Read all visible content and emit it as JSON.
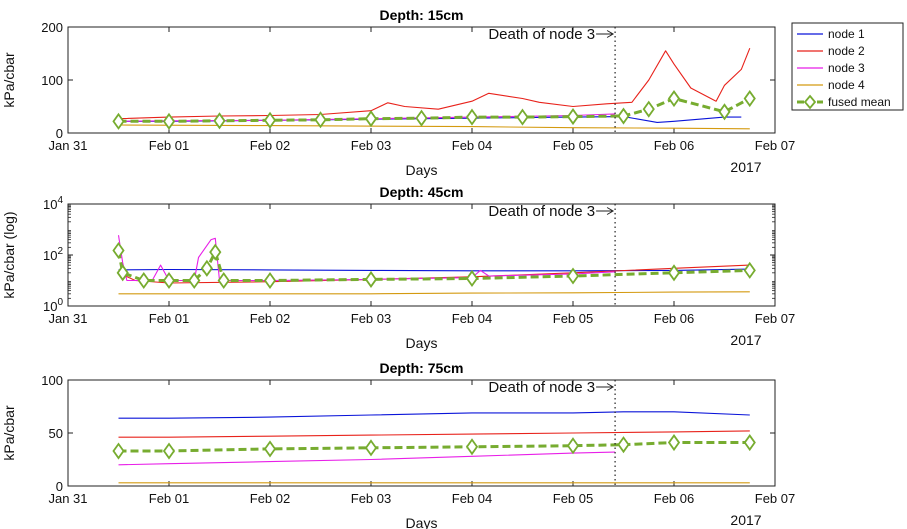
{
  "colors": {
    "node1": "#0a14d9",
    "node2": "#e8221b",
    "node3": "#e81fe8",
    "node4": "#d49a10",
    "fused": "#77ac30"
  },
  "legend": {
    "items": [
      {
        "key": "node1",
        "label": "node 1",
        "style": "line"
      },
      {
        "key": "node2",
        "label": "node 2",
        "style": "line"
      },
      {
        "key": "node3",
        "label": "node 3",
        "style": "line"
      },
      {
        "key": "node4",
        "label": "node 4",
        "style": "line"
      },
      {
        "key": "fused",
        "label": "fused mean",
        "style": "dashed-diamond"
      }
    ]
  },
  "chart_data": [
    {
      "type": "line",
      "title": "Depth: 15cm",
      "xlabel": "Days",
      "ylabel": "kPa/cbar",
      "year_label": "2017",
      "xlim": [
        "2017-01-31 00:00",
        "2017-02-07 00:00"
      ],
      "ylim": [
        0,
        200
      ],
      "yscale": "linear",
      "xticks": [
        "Jan 31",
        "Feb 01",
        "Feb 02",
        "Feb 03",
        "Feb 04",
        "Feb 05",
        "Feb 06",
        "Feb 07"
      ],
      "yticks": [
        "0",
        "100",
        "200"
      ],
      "annotation": {
        "text": "Death of node 3",
        "x": "2017-02-05 10:00"
      },
      "series": [
        {
          "name": "node 1",
          "key": "node1",
          "x": [
            "2017-01-31 12:00",
            "2017-02-01 00:00",
            "2017-02-01 12:00",
            "2017-02-02 00:00",
            "2017-02-02 12:00",
            "2017-02-03 00:00",
            "2017-02-03 12:00",
            "2017-02-04 00:00",
            "2017-02-04 12:00",
            "2017-02-05 00:00",
            "2017-02-05 12:00",
            "2017-02-05 20:00",
            "2017-02-06 00:00",
            "2017-02-06 12:00",
            "2017-02-06 16:00"
          ],
          "y": [
            22,
            22,
            23,
            24,
            25,
            26,
            27,
            28,
            29,
            30,
            31,
            20,
            22,
            30,
            30
          ]
        },
        {
          "name": "node 2",
          "key": "node2",
          "x": [
            "2017-01-31 12:00",
            "2017-02-01 00:00",
            "2017-02-01 12:00",
            "2017-02-02 00:00",
            "2017-02-02 12:00",
            "2017-02-03 00:00",
            "2017-02-03 04:00",
            "2017-02-03 08:00",
            "2017-02-03 16:00",
            "2017-02-04 00:00",
            "2017-02-04 04:00",
            "2017-02-04 12:00",
            "2017-02-04 16:00",
            "2017-02-05 00:00",
            "2017-02-05 08:00",
            "2017-02-05 14:00",
            "2017-02-05 18:00",
            "2017-02-05 22:00",
            "2017-02-06 00:00",
            "2017-02-06 04:00",
            "2017-02-06 10:00",
            "2017-02-06 12:00",
            "2017-02-06 16:00",
            "2017-02-06 18:00"
          ],
          "y": [
            27,
            30,
            32,
            33,
            35,
            42,
            57,
            50,
            45,
            60,
            75,
            65,
            58,
            50,
            55,
            58,
            100,
            155,
            130,
            85,
            60,
            90,
            120,
            160
          ]
        },
        {
          "name": "node 3",
          "key": "node3",
          "x": [
            "2017-01-31 12:00",
            "2017-02-01 00:00",
            "2017-02-02 00:00",
            "2017-02-03 00:00",
            "2017-02-04 00:00",
            "2017-02-05 00:00",
            "2017-02-05 10:00"
          ],
          "y": [
            22,
            23,
            24,
            27,
            30,
            33,
            36
          ]
        },
        {
          "name": "node 4",
          "key": "node4",
          "x": [
            "2017-01-31 12:00",
            "2017-02-02 00:00",
            "2017-02-04 00:00",
            "2017-02-05 00:00",
            "2017-02-06 00:00",
            "2017-02-06 18:00"
          ],
          "y": [
            15,
            14,
            12,
            10,
            9,
            8
          ]
        },
        {
          "name": "fused mean",
          "key": "fused",
          "x": [
            "2017-01-31 12:00",
            "2017-02-01 00:00",
            "2017-02-01 12:00",
            "2017-02-02 00:00",
            "2017-02-02 12:00",
            "2017-02-03 00:00",
            "2017-02-03 12:00",
            "2017-02-04 00:00",
            "2017-02-04 12:00",
            "2017-02-05 00:00",
            "2017-02-05 12:00",
            "2017-02-05 18:00",
            "2017-02-06 00:00",
            "2017-02-06 12:00",
            "2017-02-06 18:00"
          ],
          "y": [
            22,
            22,
            23,
            24,
            25,
            27,
            28,
            30,
            30,
            31,
            32,
            45,
            65,
            40,
            65
          ]
        }
      ]
    },
    {
      "type": "line",
      "title": "Depth: 45cm",
      "xlabel": "Days",
      "ylabel": "kPa/cbar (log)",
      "year_label": "2017",
      "xlim": [
        "2017-01-31 00:00",
        "2017-02-07 00:00"
      ],
      "ylim": [
        1,
        10000
      ],
      "yscale": "log",
      "xticks": [
        "Jan 31",
        "Feb 01",
        "Feb 02",
        "Feb 03",
        "Feb 04",
        "Feb 05",
        "Feb 06",
        "Feb 07"
      ],
      "yticks": [
        "10^0",
        "10^2",
        "10^4"
      ],
      "annotation": {
        "text": "Death of node 3",
        "x": "2017-02-05 10:00"
      },
      "series": [
        {
          "name": "node 1",
          "key": "node1",
          "x": [
            "2017-01-31 12:00",
            "2017-02-01 00:00",
            "2017-02-02 00:00",
            "2017-02-03 00:00",
            "2017-02-04 00:00",
            "2017-02-05 00:00",
            "2017-02-06 00:00",
            "2017-02-06 18:00"
          ],
          "y": [
            26,
            27,
            26,
            25,
            24,
            24,
            25,
            28
          ]
        },
        {
          "name": "node 2",
          "key": "node2",
          "x": [
            "2017-01-31 12:00",
            "2017-01-31 16:00",
            "2017-02-01 00:00",
            "2017-02-02 00:00",
            "2017-02-03 00:00",
            "2017-02-04 00:00",
            "2017-02-05 00:00",
            "2017-02-06 00:00",
            "2017-02-06 18:00"
          ],
          "y": [
            20,
            10,
            8,
            9,
            11,
            14,
            20,
            30,
            40
          ]
        },
        {
          "name": "node 3",
          "key": "node3",
          "x": [
            "2017-01-31 12:00",
            "2017-01-31 13:00",
            "2017-01-31 14:00",
            "2017-01-31 20:00",
            "2017-01-31 22:00",
            "2017-02-01 00:00",
            "2017-02-01 06:00",
            "2017-02-01 07:00",
            "2017-02-01 10:00",
            "2017-02-01 11:00",
            "2017-02-01 12:00",
            "2017-02-02 00:00",
            "2017-02-03 00:00",
            "2017-02-04 00:00",
            "2017-02-04 02:00",
            "2017-02-04 04:00",
            "2017-02-05 00:00",
            "2017-02-05 10:00"
          ],
          "y": [
            600,
            50,
            10,
            10,
            40,
            10,
            10,
            80,
            400,
            450,
            10,
            10,
            11,
            13,
            25,
            15,
            18,
            22
          ]
        },
        {
          "name": "node 4",
          "key": "node4",
          "x": [
            "2017-01-31 12:00",
            "2017-02-01 00:00",
            "2017-02-02 00:00",
            "2017-02-03 00:00",
            "2017-02-04 00:00",
            "2017-02-05 00:00",
            "2017-02-06 00:00",
            "2017-02-06 18:00"
          ],
          "y": [
            3,
            3,
            3,
            3,
            3.2,
            3.3,
            3.5,
            3.6
          ]
        },
        {
          "name": "fused mean",
          "key": "fused",
          "x": [
            "2017-01-31 12:00",
            "2017-01-31 13:00",
            "2017-01-31 18:00",
            "2017-02-01 00:00",
            "2017-02-01 06:00",
            "2017-02-01 09:00",
            "2017-02-01 11:00",
            "2017-02-01 13:00",
            "2017-02-02 00:00",
            "2017-02-03 00:00",
            "2017-02-04 00:00",
            "2017-02-05 00:00",
            "2017-02-06 00:00",
            "2017-02-06 18:00"
          ],
          "y": [
            150,
            20,
            10,
            10,
            10,
            30,
            130,
            10,
            10,
            11,
            12,
            15,
            20,
            25
          ]
        }
      ]
    },
    {
      "type": "line",
      "title": "Depth: 75cm",
      "xlabel": "Days",
      "ylabel": "kPa/cbar",
      "year_label": "2017",
      "xlim": [
        "2017-01-31 00:00",
        "2017-02-07 00:00"
      ],
      "ylim": [
        0,
        100
      ],
      "yscale": "linear",
      "xticks": [
        "Jan 31",
        "Feb 01",
        "Feb 02",
        "Feb 03",
        "Feb 04",
        "Feb 05",
        "Feb 06",
        "Feb 07"
      ],
      "yticks": [
        "0",
        "50",
        "100"
      ],
      "annotation": {
        "text": "Death of node 3",
        "x": "2017-02-05 10:00"
      },
      "series": [
        {
          "name": "node 1",
          "key": "node1",
          "x": [
            "2017-01-31 12:00",
            "2017-02-01 00:00",
            "2017-02-02 00:00",
            "2017-02-03 00:00",
            "2017-02-04 00:00",
            "2017-02-05 00:00",
            "2017-02-05 12:00",
            "2017-02-06 00:00",
            "2017-02-06 18:00"
          ],
          "y": [
            64,
            64,
            65,
            67,
            69,
            69,
            70,
            70,
            67
          ]
        },
        {
          "name": "node 2",
          "key": "node2",
          "x": [
            "2017-01-31 12:00",
            "2017-02-01 00:00",
            "2017-02-02 00:00",
            "2017-02-03 00:00",
            "2017-02-04 00:00",
            "2017-02-05 00:00",
            "2017-02-06 00:00",
            "2017-02-06 18:00"
          ],
          "y": [
            46,
            46,
            47,
            48,
            49,
            50,
            51,
            52
          ]
        },
        {
          "name": "node 3",
          "key": "node3",
          "x": [
            "2017-01-31 12:00",
            "2017-02-01 00:00",
            "2017-02-02 00:00",
            "2017-02-03 00:00",
            "2017-02-04 00:00",
            "2017-02-05 00:00",
            "2017-02-05 10:00"
          ],
          "y": [
            20,
            21,
            23,
            25,
            28,
            31,
            32
          ]
        },
        {
          "name": "node 4",
          "key": "node4",
          "x": [
            "2017-01-31 12:00",
            "2017-02-02 00:00",
            "2017-02-04 00:00",
            "2017-02-06 00:00",
            "2017-02-06 18:00"
          ],
          "y": [
            3,
            3,
            3,
            3,
            3
          ]
        },
        {
          "name": "fused mean",
          "key": "fused",
          "x": [
            "2017-01-31 12:00",
            "2017-02-01 00:00",
            "2017-02-02 00:00",
            "2017-02-03 00:00",
            "2017-02-04 00:00",
            "2017-02-05 00:00",
            "2017-02-05 12:00",
            "2017-02-06 00:00",
            "2017-02-06 18:00"
          ],
          "y": [
            33,
            33,
            35,
            36,
            37,
            38,
            39,
            41,
            41
          ]
        }
      ]
    }
  ]
}
